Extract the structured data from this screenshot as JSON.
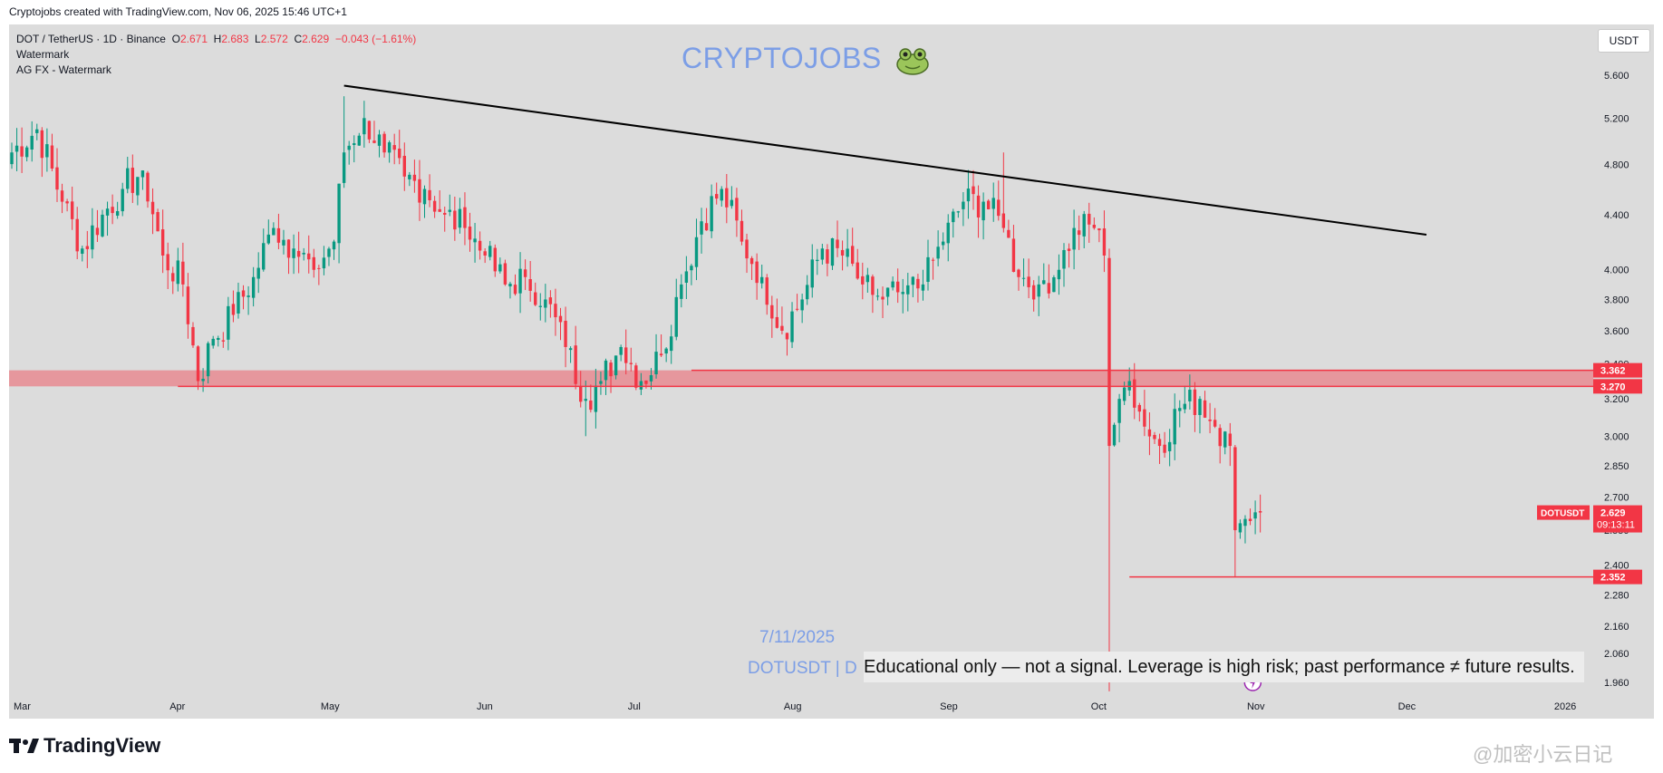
{
  "header": {
    "credit": "Cryptojobs created with TradingView.com, Nov 06, 2025 15:46 UTC+1"
  },
  "legend": {
    "symbol_line": "DOT / TetherUS · 1D · Binance",
    "o_label": "O",
    "o_value": "2.671",
    "h_label": "H",
    "h_value": "2.683",
    "l_label": "L",
    "l_value": "2.572",
    "c_label": "C",
    "c_value": "2.629",
    "change": "−0.043 (−1.61%)",
    "indicator1": "Watermark",
    "indicator2": "AG FX - Watermark"
  },
  "watermark": {
    "title": "CRYPTOJOBS",
    "date": "7/11/2025",
    "symbol": "DOTUSDT | D",
    "disclaimer": "Educational only — not a signal. Leverage is high risk; past performance ≠ future results."
  },
  "currency_button": "USDT",
  "brand": {
    "name": "TradingView"
  },
  "corner_watermark": "@加密小云日记",
  "colors": {
    "up": "#089981",
    "down": "#f23645",
    "trendline": "#000000",
    "zone": "#f23645",
    "background": "#dcdcdc",
    "watermark": "#7c9ee6"
  },
  "chart_data": {
    "type": "candlestick",
    "symbol": "DOTUSDT",
    "interval": "1D",
    "y_scale": "log",
    "y_ticks": [
      "5.600",
      "5.200",
      "4.800",
      "4.400",
      "4.000",
      "3.800",
      "3.600",
      "3.400",
      "3.200",
      "3.000",
      "2.850",
      "2.700",
      "2.550",
      "2.400",
      "2.280",
      "2.160",
      "2.060",
      "1.960"
    ],
    "x_ticks": [
      {
        "label": "Mar",
        "day": 0
      },
      {
        "label": "Apr",
        "day": 31
      },
      {
        "label": "May",
        "day": 61
      },
      {
        "label": "Jun",
        "day": 92
      },
      {
        "label": "Jul",
        "day": 122
      },
      {
        "label": "Aug",
        "day": 153
      },
      {
        "label": "Sep",
        "day": 184
      },
      {
        "label": "Oct",
        "day": 214
      },
      {
        "label": "Nov",
        "day": 245
      },
      {
        "label": "Dec",
        "day": 275
      },
      {
        "label": "2026",
        "day": 306
      }
    ],
    "close_anchors": [
      [
        0,
        4.9
      ],
      [
        5,
        5.1
      ],
      [
        10,
        4.5
      ],
      [
        14,
        4.15
      ],
      [
        18,
        4.4
      ],
      [
        22,
        4.6
      ],
      [
        26,
        4.75
      ],
      [
        30,
        4.1
      ],
      [
        34,
        3.9
      ],
      [
        37,
        3.3
      ],
      [
        40,
        3.55
      ],
      [
        44,
        3.7
      ],
      [
        48,
        3.95
      ],
      [
        52,
        4.3
      ],
      [
        56,
        4.15
      ],
      [
        60,
        4.0
      ],
      [
        64,
        4.2
      ],
      [
        66,
        4.9
      ],
      [
        70,
        5.2
      ],
      [
        74,
        4.9
      ],
      [
        78,
        4.7
      ],
      [
        82,
        4.6
      ],
      [
        86,
        4.4
      ],
      [
        90,
        4.3
      ],
      [
        94,
        4.1
      ],
      [
        98,
        3.9
      ],
      [
        102,
        3.95
      ],
      [
        106,
        3.8
      ],
      [
        110,
        3.5
      ],
      [
        114,
        3.2
      ],
      [
        117,
        3.3
      ],
      [
        121,
        3.5
      ],
      [
        125,
        3.3
      ],
      [
        129,
        3.45
      ],
      [
        133,
        3.9
      ],
      [
        137,
        4.35
      ],
      [
        141,
        4.6
      ],
      [
        145,
        4.2
      ],
      [
        149,
        3.95
      ],
      [
        153,
        3.6
      ],
      [
        157,
        3.8
      ],
      [
        161,
        4.15
      ],
      [
        165,
        4.1
      ],
      [
        169,
        3.9
      ],
      [
        173,
        3.8
      ],
      [
        177,
        3.85
      ],
      [
        181,
        3.9
      ],
      [
        185,
        4.2
      ],
      [
        189,
        4.5
      ],
      [
        193,
        4.5
      ],
      [
        197,
        4.3
      ],
      [
        200,
        3.95
      ],
      [
        204,
        3.9
      ],
      [
        208,
        4.0
      ],
      [
        211,
        4.3
      ],
      [
        215,
        4.3
      ],
      [
        217,
        4.1
      ],
      [
        218,
        2.95
      ],
      [
        220,
        3.2
      ],
      [
        222,
        3.3
      ],
      [
        225,
        3.05
      ],
      [
        228,
        2.95
      ],
      [
        232,
        3.15
      ],
      [
        236,
        3.2
      ],
      [
        239,
        3.05
      ],
      [
        242,
        2.95
      ],
      [
        243,
        2.55
      ],
      [
        245,
        2.6
      ],
      [
        247,
        2.63
      ],
      [
        248,
        2.629
      ]
    ],
    "high_spikes": [
      {
        "day": 66,
        "value": 5.4
      },
      {
        "day": 197,
        "value": 4.9
      }
    ],
    "low_spikes": [
      {
        "day": 37,
        "value": 3.25
      },
      {
        "day": 114,
        "value": 3.0
      },
      {
        "day": 218,
        "value": 1.93
      },
      {
        "day": 243,
        "value": 2.35
      }
    ],
    "trendline": {
      "from": {
        "day": 66,
        "value": 5.5
      },
      "to": {
        "day": 281,
        "value": 4.25
      }
    },
    "resistance_zone": {
      "top": 3.362,
      "bottom": 3.27,
      "top_label": "3.362",
      "bottom_label": "3.270"
    },
    "horizontal_lines": [
      {
        "value": 3.27,
        "from_day": 33
      },
      {
        "value": 3.362,
        "from_day": 135
      },
      {
        "value": 2.352,
        "from_day": 222,
        "label": "2.352"
      }
    ],
    "last_price": {
      "value": 2.629,
      "label": "2.629",
      "symbol": "DOTUSDT",
      "countdown": "09:13:11"
    }
  }
}
